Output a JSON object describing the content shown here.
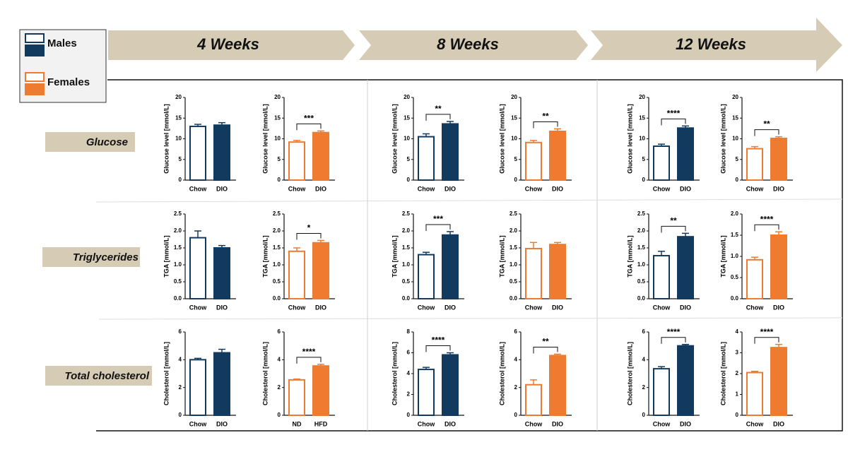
{
  "legend": {
    "males": "Males",
    "females": "Females"
  },
  "timepoints": [
    "4 Weeks",
    "8 Weeks",
    "12 Weeks"
  ],
  "rows": [
    "Glucose",
    "Triglycerides",
    "Total cholesterol"
  ],
  "chart_data": [
    {
      "type": "bar",
      "ylabel": "Glucose level [mmol/L]",
      "categories": [
        "Chow",
        "DIO"
      ],
      "values": [
        13,
        13.3
      ],
      "errors": [
        0.5,
        0.6
      ],
      "ylim": [
        0,
        20
      ],
      "yticks": [
        0,
        5,
        10,
        15,
        20
      ],
      "color": "#123a5f"
    },
    {
      "type": "bar",
      "ylabel": "Glucose level [mmol/L]",
      "categories": [
        "Chow",
        "DIO"
      ],
      "values": [
        9.2,
        11.5
      ],
      "errors": [
        0.4,
        0.4
      ],
      "ylim": [
        0,
        20
      ],
      "yticks": [
        0,
        5,
        10,
        15,
        20
      ],
      "color": "#ee7b30",
      "significance": "***"
    },
    {
      "type": "bar",
      "ylabel": "Glucose level [mmol/L]",
      "categories": [
        "Chow",
        "DIO"
      ],
      "values": [
        10.5,
        13.6
      ],
      "errors": [
        0.7,
        0.6
      ],
      "ylim": [
        0,
        20
      ],
      "yticks": [
        0,
        5,
        10,
        15,
        20
      ],
      "color": "#123a5f",
      "significance": "**"
    },
    {
      "type": "bar",
      "ylabel": "Glucose level [mmol/L]",
      "categories": [
        "Chow",
        "DIO"
      ],
      "values": [
        9.1,
        11.8
      ],
      "errors": [
        0.5,
        0.6
      ],
      "ylim": [
        0,
        20
      ],
      "yticks": [
        0,
        5,
        10,
        15,
        20
      ],
      "color": "#ee7b30",
      "significance": "**"
    },
    {
      "type": "bar",
      "ylabel": "Glucose level [mmol/L]",
      "categories": [
        "Chow",
        "DIO"
      ],
      "values": [
        8.2,
        12.6
      ],
      "errors": [
        0.5,
        0.5
      ],
      "ylim": [
        0,
        20
      ],
      "yticks": [
        0,
        5,
        10,
        15,
        20
      ],
      "color": "#123a5f",
      "significance": "****"
    },
    {
      "type": "bar",
      "ylabel": "Glucose level [mmol/L]",
      "categories": [
        "Chow",
        "DIO"
      ],
      "values": [
        7.6,
        10.1
      ],
      "errors": [
        0.5,
        0.4
      ],
      "ylim": [
        0,
        20
      ],
      "yticks": [
        0,
        5,
        10,
        15,
        20
      ],
      "color": "#ee7b30",
      "significance": "**"
    },
    {
      "type": "bar",
      "ylabel": "TGA [mmol/L]",
      "categories": [
        "Chow",
        "DIO"
      ],
      "values": [
        1.8,
        1.5
      ],
      "errors": [
        0.2,
        0.07
      ],
      "ylim": [
        0,
        2.5
      ],
      "yticks": [
        {
          "value": 0,
          "label": "0.0"
        },
        0.5,
        {
          "value": 1,
          "label": "1.0"
        },
        1.5,
        {
          "value": 2,
          "label": "2.0"
        },
        2.5
      ],
      "color": "#123a5f"
    },
    {
      "type": "bar",
      "ylabel": "TGA [mmol/L]",
      "categories": [
        "Chow",
        "DIO"
      ],
      "values": [
        1.4,
        1.65
      ],
      "errors": [
        0.1,
        0.07
      ],
      "ylim": [
        0,
        2.5
      ],
      "yticks": [
        {
          "value": 0,
          "label": "0.0"
        },
        0.5,
        {
          "value": 1,
          "label": "1.0"
        },
        1.5,
        {
          "value": 2,
          "label": "2.0"
        },
        2.5
      ],
      "color": "#ee7b30",
      "significance": "*"
    },
    {
      "type": "bar",
      "ylabel": "TGA [mmol/L]",
      "categories": [
        "Chow",
        "DIO"
      ],
      "values": [
        1.3,
        1.88
      ],
      "errors": [
        0.07,
        0.1
      ],
      "ylim": [
        0,
        2.5
      ],
      "yticks": [
        {
          "value": 0,
          "label": "0.0"
        },
        0.5,
        {
          "value": 1,
          "label": "1.0"
        },
        1.5,
        {
          "value": 2,
          "label": "2.0"
        },
        2.5
      ],
      "color": "#123a5f",
      "significance": "***"
    },
    {
      "type": "bar",
      "ylabel": "TGA [mmol/L]",
      "categories": [
        "Chow",
        "DIO"
      ],
      "values": [
        1.48,
        1.6
      ],
      "errors": [
        0.18,
        0.06
      ],
      "ylim": [
        0,
        2.5
      ],
      "yticks": [
        {
          "value": 0,
          "label": "0.0"
        },
        0.5,
        {
          "value": 1,
          "label": "1.0"
        },
        1.5,
        {
          "value": 2,
          "label": "2.0"
        },
        2.5
      ],
      "color": "#ee7b30"
    },
    {
      "type": "bar",
      "ylabel": "TGA [mmol/L]",
      "categories": [
        "Chow",
        "DIO"
      ],
      "values": [
        1.27,
        1.83
      ],
      "errors": [
        0.13,
        0.1
      ],
      "ylim": [
        0,
        2.5
      ],
      "yticks": [
        {
          "value": 0,
          "label": "0.0"
        },
        0.5,
        {
          "value": 1,
          "label": "1.0"
        },
        1.5,
        {
          "value": 2,
          "label": "2.0"
        },
        2.5
      ],
      "color": "#123a5f",
      "significance": "**"
    },
    {
      "type": "bar",
      "ylabel": "TGA [mmol/L]",
      "categories": [
        "Chow",
        "DIO"
      ],
      "values": [
        0.92,
        1.5
      ],
      "errors": [
        0.06,
        0.08
      ],
      "ylim": [
        0,
        2
      ],
      "yticks": [
        {
          "value": 0,
          "label": "0.0"
        },
        0.5,
        {
          "value": 1,
          "label": "1.0"
        },
        1.5,
        {
          "value": 2,
          "label": "2.0"
        }
      ],
      "color": "#ee7b30",
      "significance": "****"
    },
    {
      "type": "bar",
      "ylabel": "Cholesterol [mmol/L]",
      "categories": [
        "Chow",
        "DIO"
      ],
      "values": [
        4.0,
        4.5
      ],
      "errors": [
        0.1,
        0.25
      ],
      "ylim": [
        0,
        6
      ],
      "yticks": [
        0,
        2,
        4,
        6
      ],
      "color": "#123a5f"
    },
    {
      "type": "bar",
      "ylabel": "Cholesterol [mmol/L]",
      "categories": [
        "ND",
        "HFD"
      ],
      "values": [
        2.55,
        3.55
      ],
      "errors": [
        0.06,
        0.12
      ],
      "ylim": [
        0,
        6
      ],
      "yticks": [
        0,
        2,
        4,
        6
      ],
      "color": "#ee7b30",
      "significance": "****"
    },
    {
      "type": "bar",
      "ylabel": "Cholesterol [mmol/L]",
      "categories": [
        "Chow",
        "DIO"
      ],
      "values": [
        4.4,
        5.8
      ],
      "errors": [
        0.2,
        0.2
      ],
      "ylim": [
        0,
        8
      ],
      "yticks": [
        0,
        2,
        4,
        6,
        8
      ],
      "color": "#123a5f",
      "significance": "****"
    },
    {
      "type": "bar",
      "ylabel": "Cholesterol [mmol/L]",
      "categories": [
        "Chow",
        "DIO"
      ],
      "values": [
        2.2,
        4.3
      ],
      "errors": [
        0.35,
        0.1
      ],
      "ylim": [
        0,
        6
      ],
      "yticks": [
        0,
        2,
        4,
        6
      ],
      "color": "#ee7b30",
      "significance": "**"
    },
    {
      "type": "bar",
      "ylabel": "Cholesterol [mmol/L]",
      "categories": [
        "Chow",
        "DIO"
      ],
      "values": [
        3.35,
        5.0
      ],
      "errors": [
        0.15,
        0.1
      ],
      "ylim": [
        0,
        6
      ],
      "yticks": [
        0,
        2,
        4,
        6
      ],
      "color": "#123a5f",
      "significance": "****"
    },
    {
      "type": "bar",
      "ylabel": "Cholesterol [mmol/L]",
      "categories": [
        "Chow",
        "DIO"
      ],
      "values": [
        2.05,
        3.25
      ],
      "errors": [
        0.06,
        0.15
      ],
      "ylim": [
        0,
        4
      ],
      "yticks": [
        0,
        1,
        2,
        3,
        4
      ],
      "color": "#ee7b30",
      "significance": "****"
    }
  ]
}
